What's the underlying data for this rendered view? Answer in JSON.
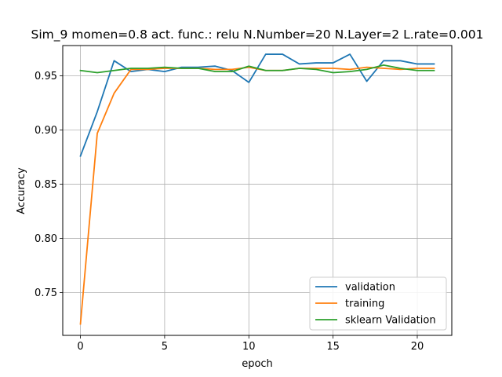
{
  "chart_data": {
    "type": "line",
    "title": "Sim_9 momen=0.8 act. func.: relu N.Number=20 N.Layer=2 L.rate=0.001",
    "xlabel": "epoch",
    "ylabel": "Accuracy",
    "xlim": [
      -1.05,
      22.05
    ],
    "ylim": [
      0.7105,
      0.978
    ],
    "xticks": [
      0,
      5,
      10,
      15,
      20
    ],
    "yticks": [
      0.75,
      0.8,
      0.85,
      0.9,
      0.95
    ],
    "ytick_labels": [
      "0.75",
      "0.80",
      "0.85",
      "0.90",
      "0.95"
    ],
    "grid": true,
    "legend_position": "lower-right",
    "x": [
      0,
      1,
      2,
      3,
      4,
      5,
      6,
      7,
      8,
      9,
      10,
      11,
      12,
      13,
      14,
      15,
      16,
      17,
      18,
      19,
      20,
      21
    ],
    "series": [
      {
        "name": "validation",
        "color": "#1f77b4",
        "values": [
          0.876,
          0.917,
          0.964,
          0.954,
          0.956,
          0.954,
          0.958,
          0.958,
          0.959,
          0.955,
          0.944,
          0.97,
          0.97,
          0.961,
          0.962,
          0.962,
          0.97,
          0.945,
          0.964,
          0.964,
          0.961,
          0.961
        ]
      },
      {
        "name": "training",
        "color": "#ff7f0e",
        "values": [
          0.721,
          0.897,
          0.934,
          0.956,
          0.956,
          0.957,
          0.957,
          0.957,
          0.956,
          0.956,
          0.958,
          0.955,
          0.955,
          0.957,
          0.957,
          0.957,
          0.956,
          0.958,
          0.957,
          0.956,
          0.957,
          0.957
        ]
      },
      {
        "name": "sklearn Validation",
        "color": "#2ca02c",
        "values": [
          0.955,
          0.953,
          0.955,
          0.957,
          0.957,
          0.958,
          0.957,
          0.957,
          0.954,
          0.954,
          0.959,
          0.955,
          0.955,
          0.957,
          0.956,
          0.953,
          0.954,
          0.956,
          0.96,
          0.957,
          0.955,
          0.955
        ]
      }
    ]
  }
}
